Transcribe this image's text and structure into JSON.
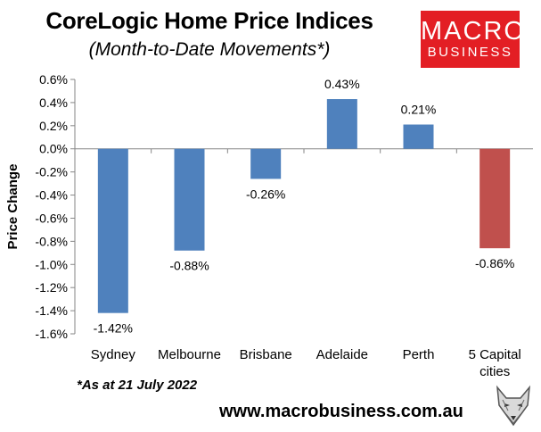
{
  "title": "CoreLogic Home Price Indices",
  "subtitle": "(Month-to-Date Movements*)",
  "logo": {
    "line1": "MACRO",
    "line2": "BUSINESS",
    "color": "#e31e24"
  },
  "footnote": "*As at 21 July 2022",
  "website": "www.macrobusiness.com.au",
  "chart_data": {
    "type": "bar",
    "ylabel": "Price Change",
    "categories": [
      "Sydney",
      "Melbourne",
      "Brisbane",
      "Adelaide",
      "Perth",
      "5 Capital cities"
    ],
    "values": [
      -1.42,
      -0.88,
      -0.26,
      0.43,
      0.21,
      -0.86
    ],
    "data_labels": [
      "-1.42%",
      "-0.88%",
      "-0.26%",
      "0.43%",
      "0.21%",
      "-0.86%"
    ],
    "colors": [
      "#4f81bd",
      "#4f81bd",
      "#4f81bd",
      "#4f81bd",
      "#4f81bd",
      "#c0504d"
    ],
    "ylim": [
      -1.6,
      0.6
    ],
    "yticks": [
      0.6,
      0.4,
      0.2,
      0.0,
      -0.2,
      -0.4,
      -0.6,
      -0.8,
      -1.0,
      -1.2,
      -1.4,
      -1.6
    ],
    "ytick_labels": [
      "0.6%",
      "0.4%",
      "0.2%",
      "0.0%",
      "-0.2%",
      "-0.4%",
      "-0.6%",
      "-0.8%",
      "-1.0%",
      "-1.2%",
      "-1.4%",
      "-1.6%"
    ],
    "grid": false,
    "legend": "none"
  }
}
